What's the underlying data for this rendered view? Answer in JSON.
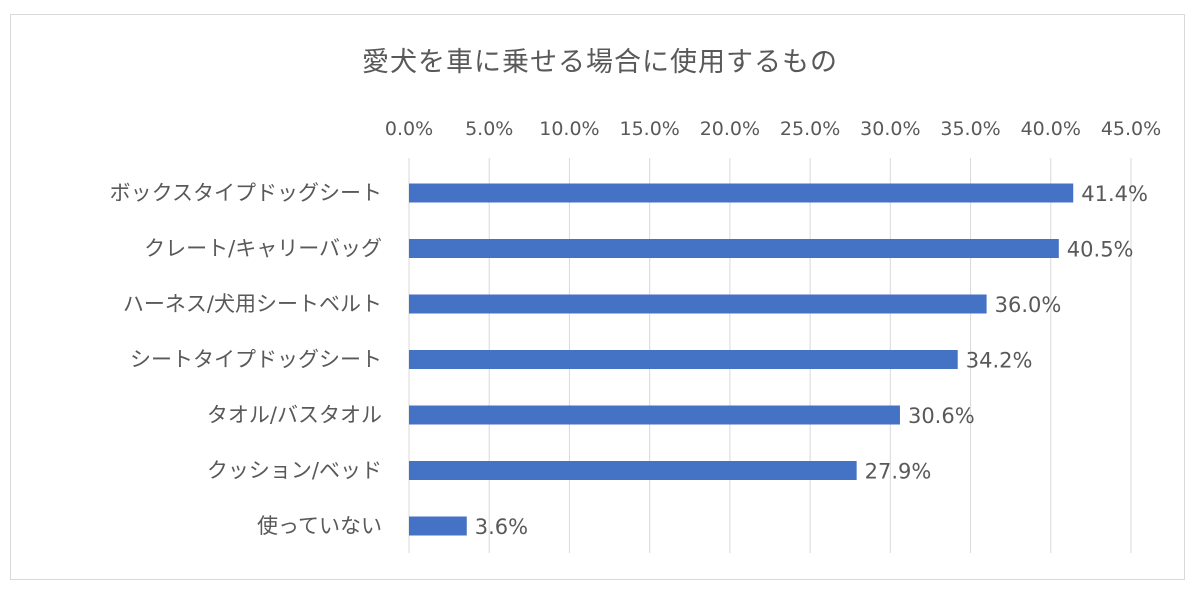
{
  "chart_data": {
    "type": "bar",
    "orientation": "horizontal",
    "title": "愛犬を車に乗せる場合に使用するもの",
    "categories": [
      "ボックスタイプドッグシート",
      "クレート/キャリーバッグ",
      "ハーネス/犬用シートベルト",
      "シートタイプドッグシート",
      "タオル/バスタオル",
      "クッション/ベッド",
      "使っていない"
    ],
    "values": [
      41.4,
      40.5,
      36.0,
      34.2,
      30.6,
      27.9,
      3.6
    ],
    "value_labels": [
      "41.4%",
      "40.5%",
      "36.0%",
      "34.2%",
      "30.6%",
      "27.9%",
      "3.6%"
    ],
    "x_ticks": [
      "0.0%",
      "5.0%",
      "10.0%",
      "15.0%",
      "20.0%",
      "25.0%",
      "30.0%",
      "35.0%",
      "40.0%",
      "45.0%"
    ],
    "xlim": [
      0,
      45
    ],
    "x_axis_position": "top",
    "grid": true,
    "bar_color": "#4472c4"
  }
}
